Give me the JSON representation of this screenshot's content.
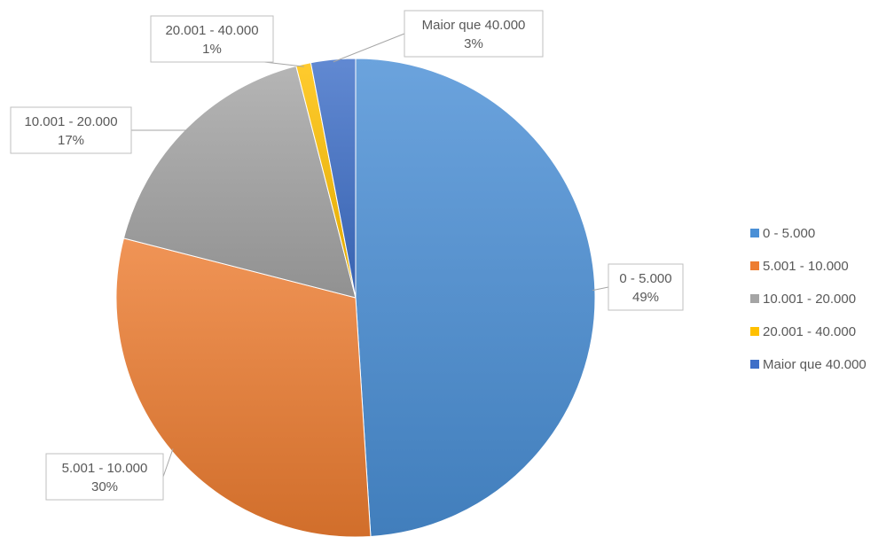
{
  "chart_data": {
    "type": "pie",
    "title": "",
    "start_angle_deg": 0,
    "direction": "clockwise",
    "legend_position": "right",
    "slices": [
      {
        "label": "0 - 5.000",
        "value": 49,
        "percent_label": "49%",
        "color": "#4A8FD6"
      },
      {
        "label": "5.001 - 10.000",
        "value": 30,
        "percent_label": "30%",
        "color": "#ED7D31"
      },
      {
        "label": "10.001 - 20.000",
        "value": 17,
        "percent_label": "17%",
        "color": "#A5A5A5"
      },
      {
        "label": "20.001 - 40.000",
        "value": 1,
        "percent_label": "1%",
        "color": "#FFC000"
      },
      {
        "label": "Maior que 40.000",
        "value": 3,
        "percent_label": "3%",
        "color": "#3E6FC8"
      }
    ]
  }
}
